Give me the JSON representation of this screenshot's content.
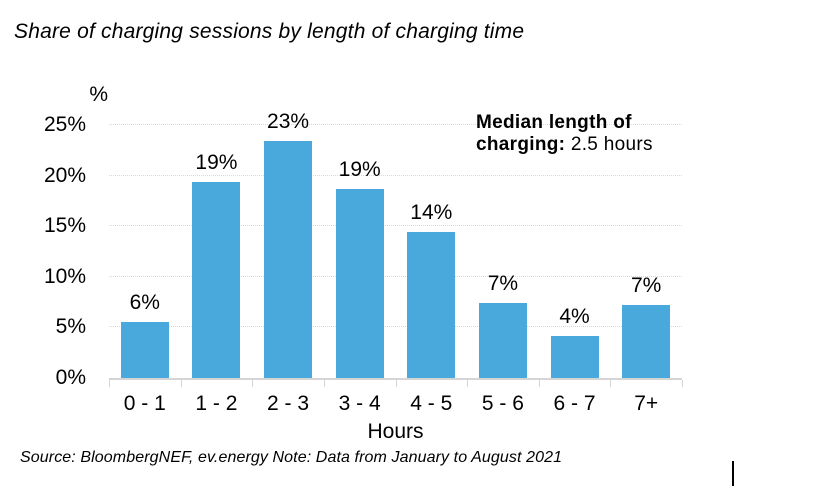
{
  "title": "Share of charging sessions by length of charging time",
  "source_note": "Source: BloombergNEF, ev.energy Note: Data from January to August 2021",
  "annotation": {
    "line1_bold": "Median length of",
    "line2_bold": "charging:",
    "line2_normal": " 2.5 hours"
  },
  "colors": {
    "bar": "#4AA9DC",
    "grid": "#D9D9D9",
    "axis": "#D5D5D5",
    "text": "#000000"
  },
  "chart_data": {
    "type": "bar",
    "title": "Share of charging sessions by length of charging time",
    "categories": [
      "0 - 1",
      "1 - 2",
      "2 - 3",
      "3 - 4",
      "4 - 5",
      "5 - 6",
      "6 - 7",
      "7+"
    ],
    "values": [
      6,
      19,
      23,
      19,
      14,
      7,
      4,
      7
    ],
    "bar_labels": [
      "6%",
      "19%",
      "23%",
      "19%",
      "14%",
      "7%",
      "4%",
      "7%"
    ],
    "drawn_values": [
      5.5,
      19.4,
      23.4,
      18.7,
      14.4,
      7.4,
      4.2,
      7.2
    ],
    "xlabel": "Hours",
    "ylabel": "%",
    "y_ticks": [
      0,
      5,
      10,
      15,
      20,
      25
    ],
    "y_tick_labels": [
      "0%",
      "5%",
      "10%",
      "15%",
      "20%",
      "25%"
    ],
    "ylim": [
      0,
      27.5
    ],
    "grid": "horizontal-dotted",
    "legend": "none"
  }
}
